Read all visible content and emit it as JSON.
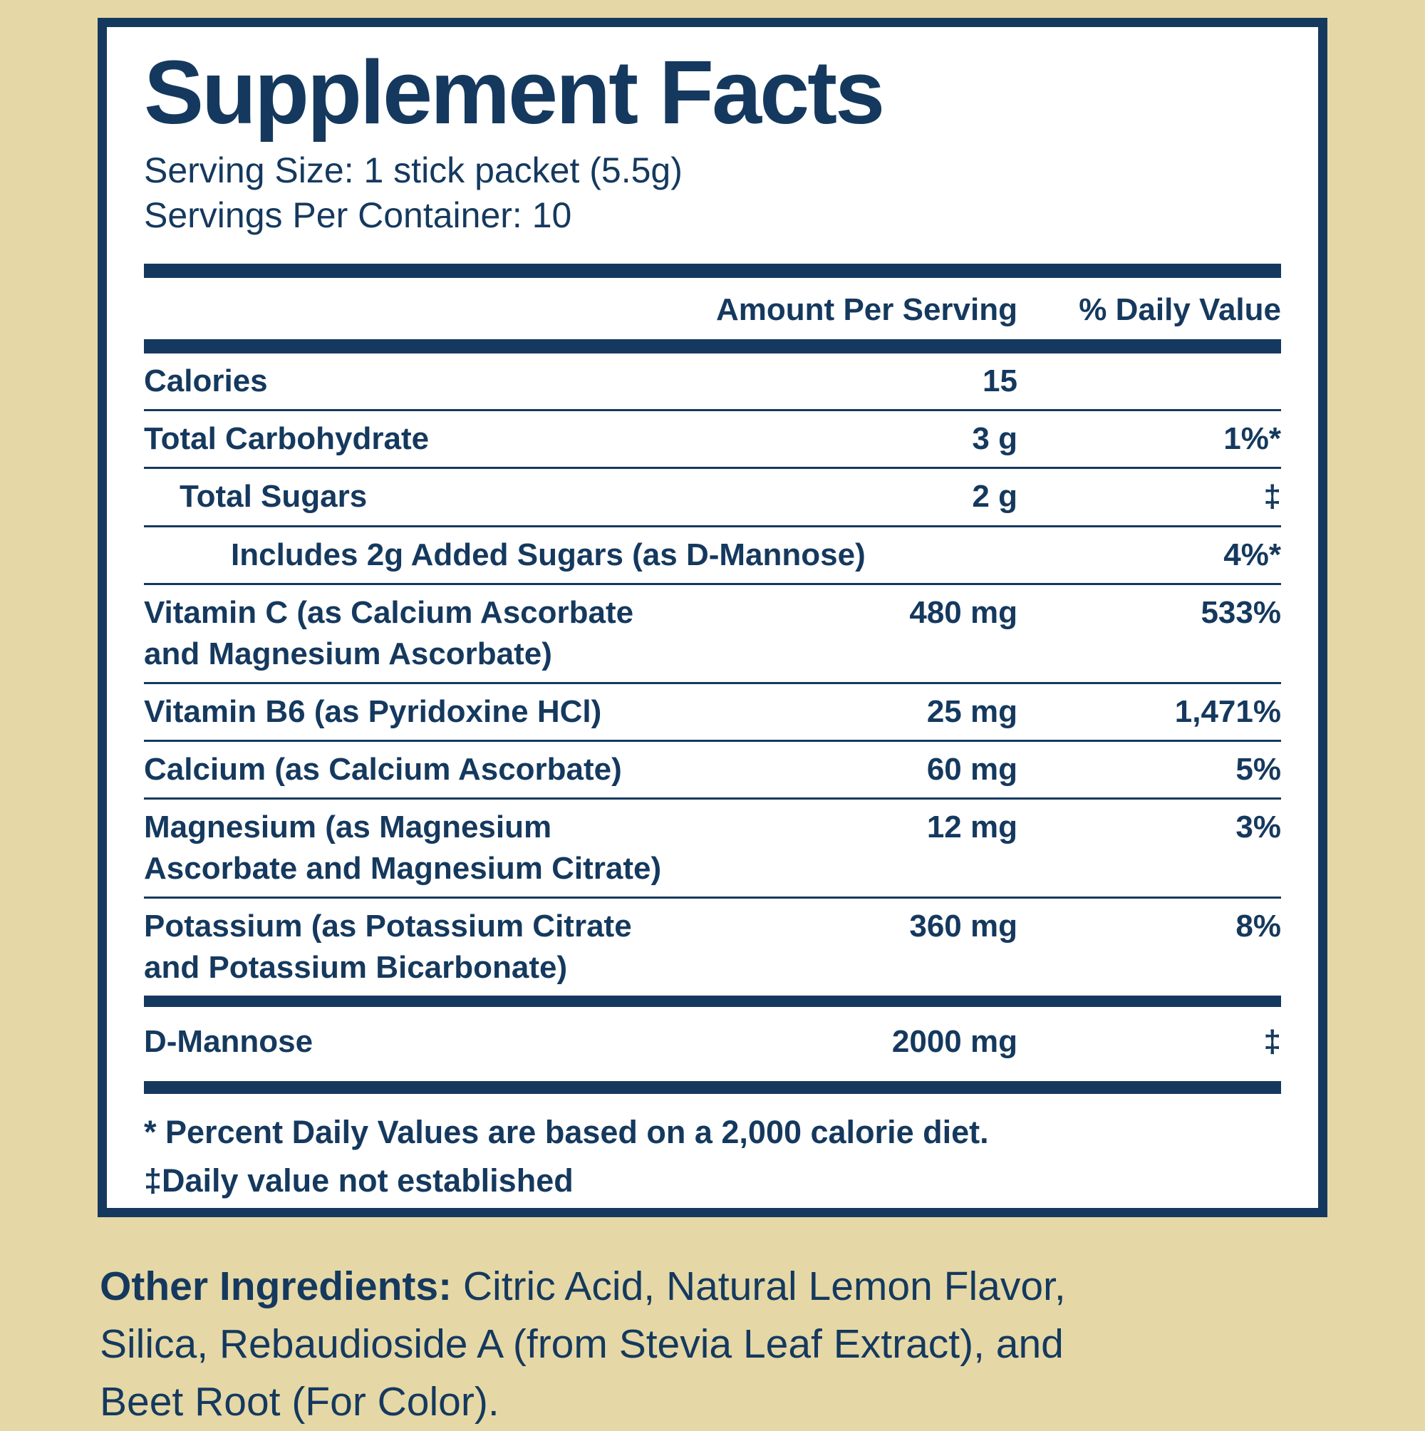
{
  "colors": {
    "background": "#E5D8A6",
    "panel_background": "#FFFFFF",
    "navy": "#15395E"
  },
  "panel": {
    "title": "Supplement Facts",
    "serving_size": "Serving Size: 1 stick packet (5.5g)",
    "servings_per_container": "Servings Per Container: 10",
    "columns": {
      "amount": "Amount Per Serving",
      "daily_value": "% Daily Value"
    },
    "rows": [
      {
        "label": "Calories",
        "indent": 0,
        "amount": "15",
        "daily_value": ""
      },
      {
        "label": "Total Carbohydrate",
        "indent": 0,
        "amount": "3 g",
        "daily_value": "1%*"
      },
      {
        "label": "Total Sugars",
        "indent": 1,
        "amount": "2 g",
        "daily_value": "‡"
      },
      {
        "label": "Includes 2g Added Sugars (as D-Mannose)",
        "indent": 2,
        "amount": "",
        "daily_value": "4%*"
      },
      {
        "label": "Vitamin C (as Calcium Ascorbate\nand Magnesium Ascorbate)",
        "indent": 0,
        "amount": "480 mg",
        "daily_value": "533%"
      },
      {
        "label": "Vitamin B6 (as Pyridoxine HCl)",
        "indent": 0,
        "amount": "25 mg",
        "daily_value": "1,471%"
      },
      {
        "label": "Calcium (as Calcium Ascorbate)",
        "indent": 0,
        "amount": "60 mg",
        "daily_value": "5%"
      },
      {
        "label": "Magnesium (as Magnesium\nAscorbate and Magnesium Citrate)",
        "indent": 0,
        "amount": "12 mg",
        "daily_value": "3%"
      },
      {
        "label": "Potassium (as Potassium Citrate\nand Potassium Bicarbonate)",
        "indent": 0,
        "amount": "360 mg",
        "daily_value": "8%"
      }
    ],
    "extra_rows": [
      {
        "label": "D-Mannose",
        "amount": "2000 mg",
        "daily_value": "‡"
      }
    ],
    "footnotes": [
      "* Percent Daily Values are based on a 2,000 calorie diet.",
      "‡Daily value not established"
    ]
  },
  "other_ingredients": {
    "label": "Other Ingredients:",
    "text": " Citric Acid, Natural Lemon Flavor,\nSilica, Rebaudioside A (from Stevia Leaf Extract), and\nBeet Root (For Color)."
  }
}
